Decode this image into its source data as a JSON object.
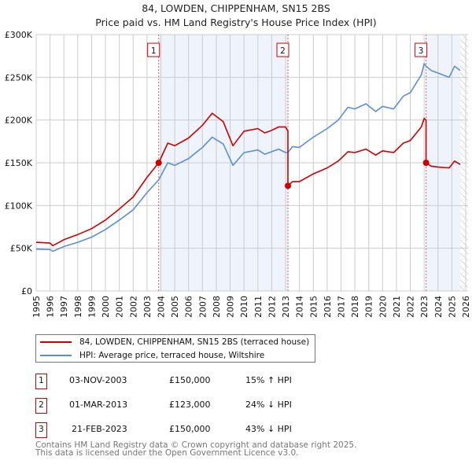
{
  "title_line1": "84, LOWDEN, CHIPPENHAM, SN15 2BS",
  "title_line2": "Price paid vs. HM Land Registry's House Price Index (HPI)",
  "chart_data": {
    "type": "line",
    "title": "84, LOWDEN, CHIPPENHAM, SN15 2BS — Price paid vs. HM Land Registry's House Price Index (HPI)",
    "xlim": [
      1995,
      2026
    ],
    "ylim": [
      0,
      300000
    ],
    "x_ticks": [
      "1995",
      "1996",
      "1997",
      "1998",
      "1999",
      "2000",
      "2001",
      "2002",
      "2003",
      "2004",
      "2005",
      "2006",
      "2007",
      "2008",
      "2009",
      "2010",
      "2011",
      "2012",
      "2013",
      "2014",
      "2015",
      "2016",
      "2017",
      "2018",
      "2019",
      "2020",
      "2021",
      "2022",
      "2023",
      "2024",
      "2025",
      "2026"
    ],
    "y_ticks": [
      {
        "v": 0,
        "label": "£0"
      },
      {
        "v": 50000,
        "label": "£50K"
      },
      {
        "v": 100000,
        "label": "£100K"
      },
      {
        "v": 150000,
        "label": "£150K"
      },
      {
        "v": 200000,
        "label": "£200K"
      },
      {
        "v": 250000,
        "label": "£250K"
      },
      {
        "v": 300000,
        "label": "£300K"
      }
    ],
    "grid": true,
    "series": [
      {
        "name": "84, LOWDEN, CHIPPENHAM, SN15 2BS (terraced house)",
        "color": "#cc0000",
        "x": [
          1995,
          1996,
          1996.2,
          1997,
          1998,
          1999,
          2000,
          2001,
          2002,
          2003,
          2003.84,
          2004.5,
          2005,
          2006,
          2007,
          2007.7,
          2008.5,
          2009.2,
          2010,
          2011,
          2011.5,
          2012,
          2012.5,
          2013,
          2013.17,
          2013.17,
          2013.5,
          2014,
          2015,
          2016,
          2016.8,
          2017.5,
          2018,
          2018.8,
          2019.5,
          2020,
          2020.8,
          2021.5,
          2022,
          2022.8,
          2023,
          2023.14,
          2023.14,
          2023.5,
          2024,
          2024.8,
          2025.2,
          2025.6
        ],
        "y": [
          57000,
          56000,
          53000,
          60000,
          66000,
          73000,
          83000,
          96000,
          110000,
          133000,
          150000,
          173000,
          170000,
          179000,
          194000,
          208000,
          198000,
          170000,
          187000,
          190000,
          185000,
          188000,
          192000,
          192000,
          187000,
          123000,
          128000,
          128000,
          137000,
          144000,
          152000,
          163000,
          162000,
          166000,
          159000,
          164000,
          162000,
          173000,
          176000,
          192000,
          202000,
          200000,
          150000,
          146000,
          145000,
          144000,
          152000,
          148000
        ]
      },
      {
        "name": "HPI: Average price, terraced house, Wiltshire",
        "color": "#5b8fd4",
        "x": [
          1995,
          1996,
          1996.2,
          1997,
          1998,
          1999,
          2000,
          2001,
          2002,
          2003,
          2003.84,
          2004.5,
          2005,
          2006,
          2007,
          2007.7,
          2008.5,
          2009.2,
          2010,
          2011,
          2011.5,
          2012,
          2012.5,
          2013,
          2013.17,
          2013.5,
          2014,
          2015,
          2016,
          2016.8,
          2017.5,
          2018,
          2018.8,
          2019.5,
          2020,
          2020.8,
          2021.5,
          2022,
          2022.8,
          2023,
          2023.14,
          2023.5,
          2024,
          2024.8,
          2025.2,
          2025.6
        ],
        "y": [
          49000,
          48500,
          46500,
          52000,
          57000,
          63000,
          72000,
          83000,
          95000,
          115000,
          130000,
          150000,
          147000,
          155000,
          168000,
          180000,
          172000,
          147000,
          162000,
          165000,
          160000,
          163000,
          166000,
          162000,
          162000,
          169000,
          168000,
          180000,
          190000,
          200000,
          215000,
          213000,
          219000,
          210000,
          216000,
          213000,
          228000,
          232000,
          253000,
          266000,
          263000,
          258000,
          255000,
          250000,
          263000,
          258000
        ]
      }
    ],
    "sales": [
      {
        "n": "1",
        "x": 2003.84,
        "y": 150000,
        "date": "03-NOV-2003",
        "price": "£150,000",
        "hpi": "15% ↑ HPI"
      },
      {
        "n": "2",
        "x": 2013.17,
        "y": 123000,
        "date": "01-MAR-2013",
        "price": "£123,000",
        "hpi": "24% ↓ HPI"
      },
      {
        "n": "3",
        "x": 2023.14,
        "y": 150000,
        "date": "21-FEB-2023",
        "price": "£150,000",
        "hpi": "43% ↓ HPI"
      }
    ],
    "shaded_ranges": [
      [
        2003.84,
        2013.17
      ],
      [
        2023.14,
        2025.6
      ]
    ],
    "forecast_hatch_from": 2025.6,
    "legend_placement": "below"
  },
  "legend": {
    "red_label": "84, LOWDEN, CHIPPENHAM, SN15 2BS (terraced house)",
    "blue_label": "HPI: Average price, terraced house, Wiltshire"
  },
  "footer": {
    "line1": "Contains HM Land Registry data © Crown copyright and database right 2025.",
    "line2": "This data is licensed under the Open Government Licence v3.0."
  }
}
